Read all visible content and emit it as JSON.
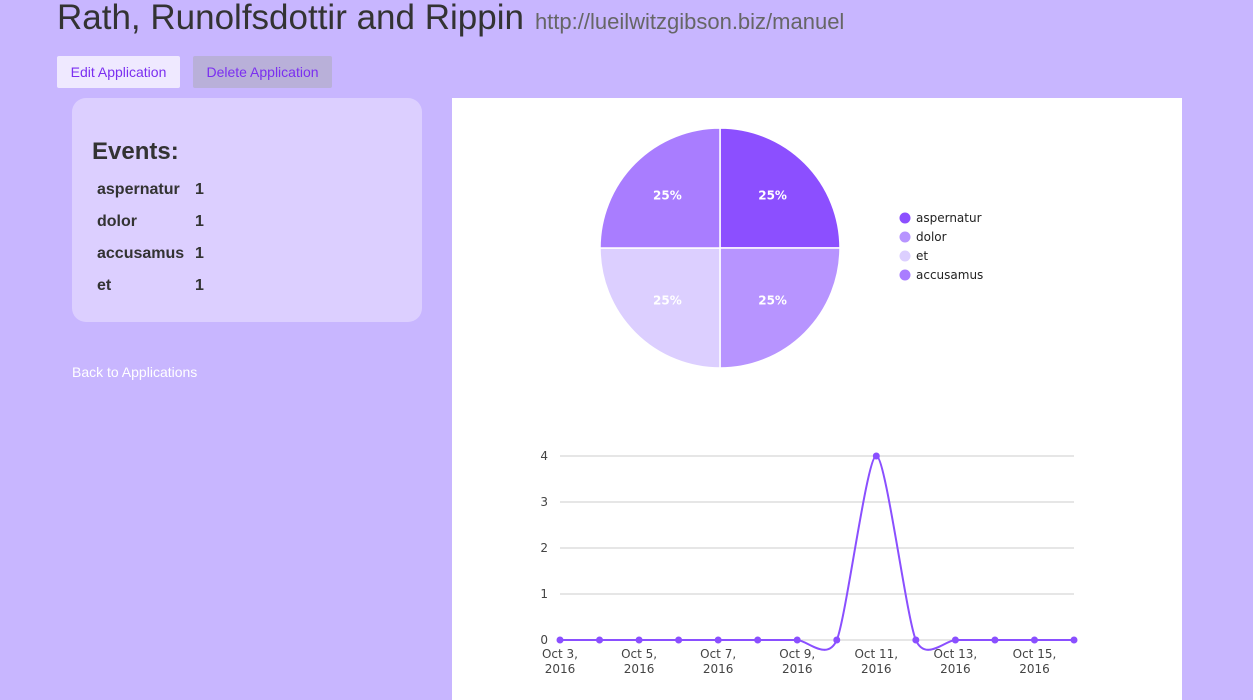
{
  "header": {
    "title": "Rath, Runolfsdottir and Rippin",
    "url": "http://lueilwitzgibson.biz/manuel"
  },
  "actions": {
    "edit_label": "Edit Application",
    "delete_label": "Delete Application"
  },
  "events": {
    "heading": "Events:",
    "items": [
      {
        "name": "aspernatur",
        "count": "1"
      },
      {
        "name": "dolor",
        "count": "1"
      },
      {
        "name": "accusamus",
        "count": "1"
      },
      {
        "name": "et",
        "count": "1"
      }
    ]
  },
  "back_link": "Back to Applications",
  "colors": {
    "page_bg": "#c8b6ff",
    "card_bg": "#dccfff",
    "accent": "#7b2ff0",
    "line": "#8a4fff"
  },
  "chart_data": [
    {
      "type": "pie",
      "slices": [
        {
          "name": "aspernatur",
          "value": 25,
          "label": "25%",
          "color": "#8c4fff"
        },
        {
          "name": "dolor",
          "value": 25,
          "label": "25%",
          "color": "#b794ff"
        },
        {
          "name": "et",
          "value": 25,
          "label": "25%",
          "color": "#dccfff"
        },
        {
          "name": "accusamus",
          "value": 25,
          "label": "25%",
          "color": "#a97dff"
        }
      ],
      "legend": [
        "aspernatur",
        "dolor",
        "et",
        "accusamus"
      ],
      "legend_placement": "right"
    },
    {
      "type": "line",
      "x": [
        "Oct 3, 2016",
        "Oct 4, 2016",
        "Oct 5, 2016",
        "Oct 6, 2016",
        "Oct 7, 2016",
        "Oct 8, 2016",
        "Oct 9, 2016",
        "Oct 10, 2016",
        "Oct 11, 2016",
        "Oct 12, 2016",
        "Oct 13, 2016",
        "Oct 14, 2016",
        "Oct 15, 2016",
        "Oct 16, 2016"
      ],
      "xticks": [
        [
          "Oct 3,",
          "2016"
        ],
        [
          "Oct 5,",
          "2016"
        ],
        [
          "Oct 7,",
          "2016"
        ],
        [
          "Oct 9,",
          "2016"
        ],
        [
          "Oct 11,",
          "2016"
        ],
        [
          "Oct 13,",
          "2016"
        ],
        [
          "Oct 15,",
          "2016"
        ]
      ],
      "yticks": [
        "0",
        "1",
        "2",
        "3",
        "4"
      ],
      "values": [
        0,
        0,
        0,
        0,
        0,
        0,
        0,
        0,
        4,
        0,
        0,
        0,
        0,
        0
      ],
      "ylim": [
        0,
        4
      ],
      "grid": true,
      "color": "#8a4fff"
    }
  ]
}
